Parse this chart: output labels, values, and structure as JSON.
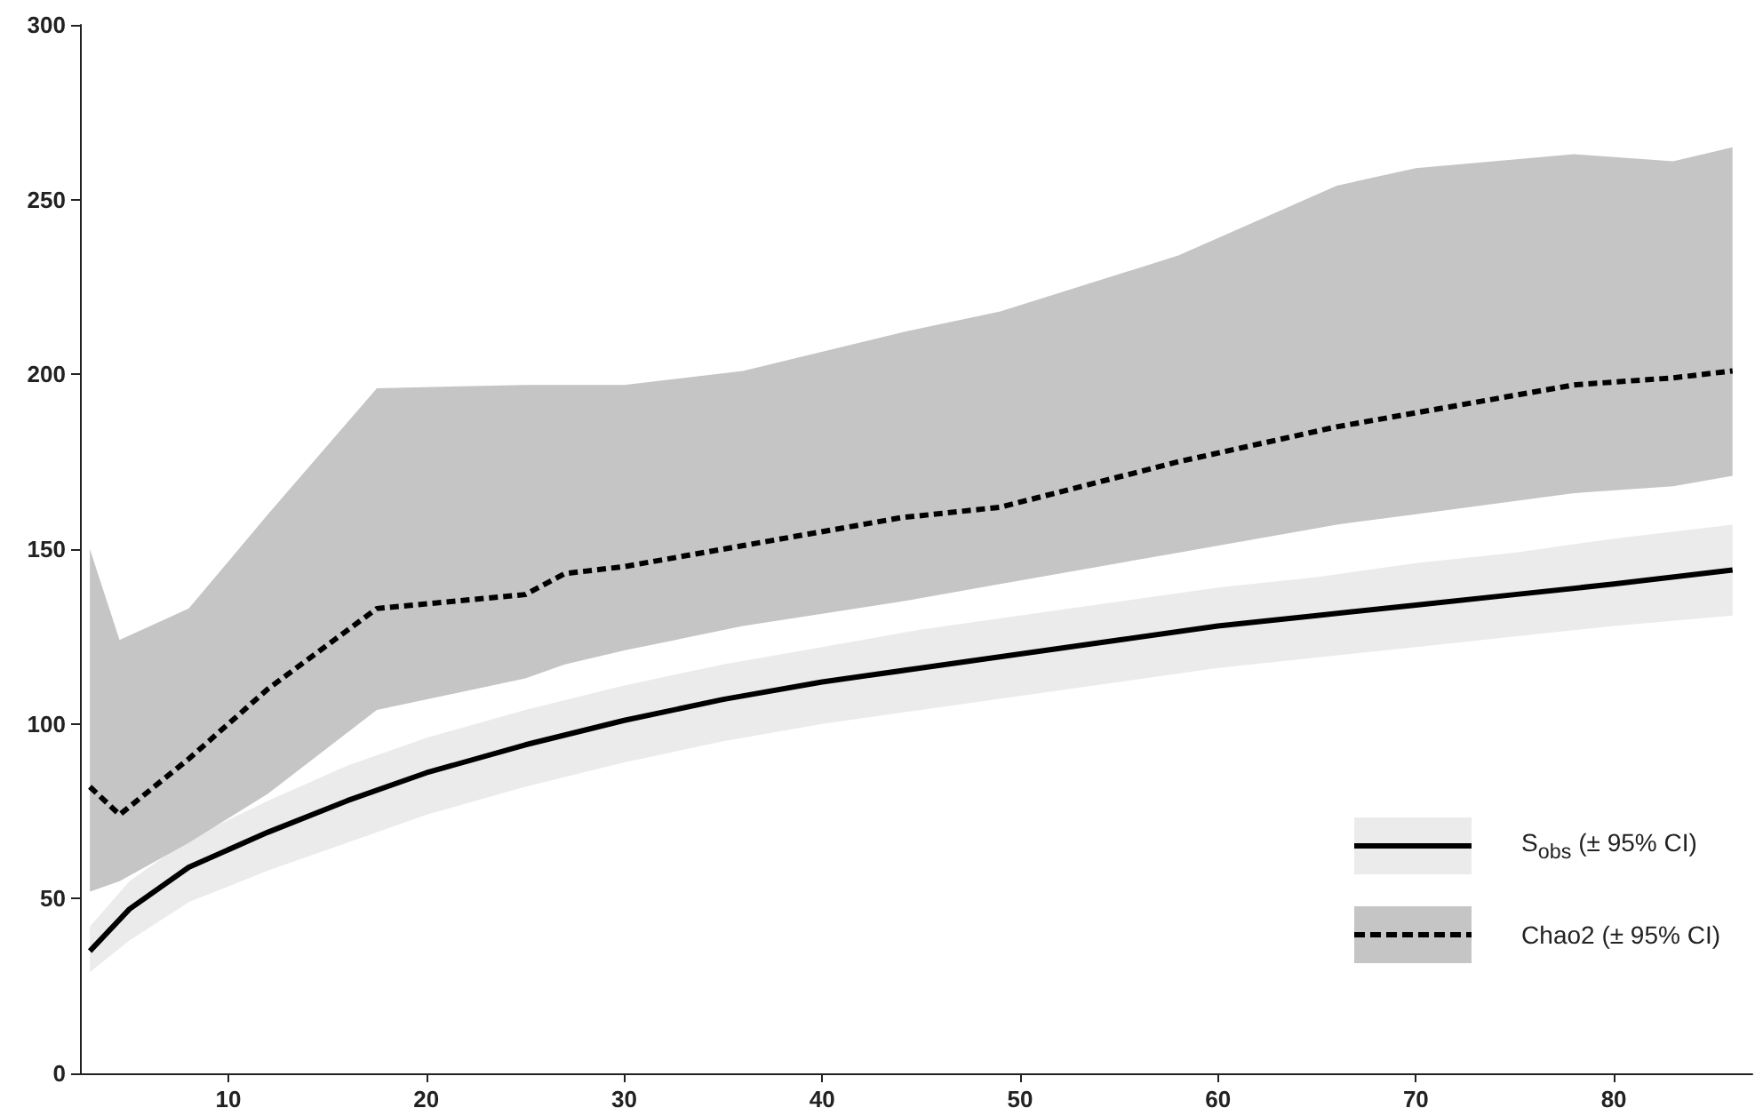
{
  "chart_data": {
    "type": "line",
    "xlim": [
      2.5,
      87
    ],
    "xticks": [
      10,
      20,
      30,
      40,
      50,
      60,
      70,
      80
    ],
    "ylim": [
      0,
      300
    ],
    "yticks": [
      0,
      50,
      100,
      150,
      200,
      250,
      300
    ],
    "grid": false,
    "legend": "bottom right",
    "marker": "none",
    "series": [
      {
        "name": "S$_{obs}$ (± 95% CI)",
        "color": "#000000",
        "line_style": "solid",
        "x": [
          3,
          5,
          8,
          12,
          16,
          20,
          25,
          30,
          35,
          40,
          45,
          50,
          55,
          60,
          65,
          70,
          75,
          80,
          86
        ],
        "values": [
          35,
          47,
          59,
          69,
          78,
          86,
          94,
          101,
          107,
          112,
          116,
          120,
          124,
          128,
          131,
          134,
          137,
          140,
          144
        ],
        "lower": [
          29,
          38,
          49,
          58,
          66,
          74,
          82,
          89,
          95,
          100,
          104,
          108,
          112,
          116,
          119,
          122,
          125,
          128,
          131
        ],
        "upper": [
          42,
          55,
          67,
          78,
          88,
          96,
          104,
          111,
          117,
          122,
          127,
          131,
          135,
          139,
          142,
          146,
          149,
          153,
          157
        ]
      },
      {
        "name": "Chao2 (± 95% CI)",
        "color": "#000000",
        "line_style": "dashed",
        "x": [
          3,
          4.5,
          8,
          12,
          17.5,
          25,
          27,
          30,
          36,
          44,
          49,
          58,
          66,
          70,
          78,
          83,
          86
        ],
        "values": [
          82,
          74,
          90,
          110,
          133,
          137,
          143,
          145,
          151,
          159,
          162,
          175,
          185,
          189,
          197,
          199,
          201
        ],
        "lower": [
          52,
          55,
          66,
          80,
          104,
          113,
          117,
          121,
          128,
          135,
          140,
          149,
          157,
          160,
          166,
          168,
          171
        ],
        "upper": [
          150,
          124,
          133,
          160,
          196,
          197,
          197,
          197,
          201,
          212,
          218,
          234,
          254,
          259,
          263,
          261,
          265
        ]
      }
    ]
  }
}
